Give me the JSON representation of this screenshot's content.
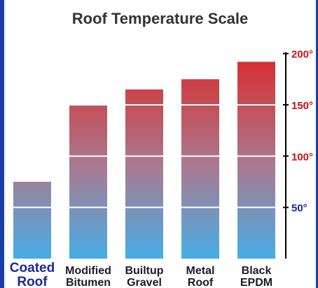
{
  "chart_data": {
    "type": "bar",
    "title": "Roof Temperature Scale",
    "categories": [
      [
        "Coated",
        "Roof"
      ],
      [
        "Modified",
        "Bitumen"
      ],
      [
        "Builtup",
        "Gravel"
      ],
      [
        "Metal",
        "Roof"
      ],
      [
        "Black",
        "EPDM"
      ]
    ],
    "values": [
      75,
      150,
      165,
      175,
      192
    ],
    "ylim": [
      0,
      210
    ],
    "yticks": [
      {
        "value": 200,
        "label": "200°"
      },
      {
        "value": 150,
        "label": "150°"
      },
      {
        "value": 100,
        "label": "100°"
      },
      {
        "value": 50,
        "label": "50°"
      }
    ],
    "grid": true,
    "colors": {
      "bar_top": "#d92b2b",
      "bar_bottom": "#45aee6",
      "first_label": "#1a2a9a",
      "other_labels": "#1a1a2a",
      "tick_hot": "#cc1111",
      "tick_cool": "#1a2a9a",
      "frame": "#1a3ea8"
    }
  }
}
